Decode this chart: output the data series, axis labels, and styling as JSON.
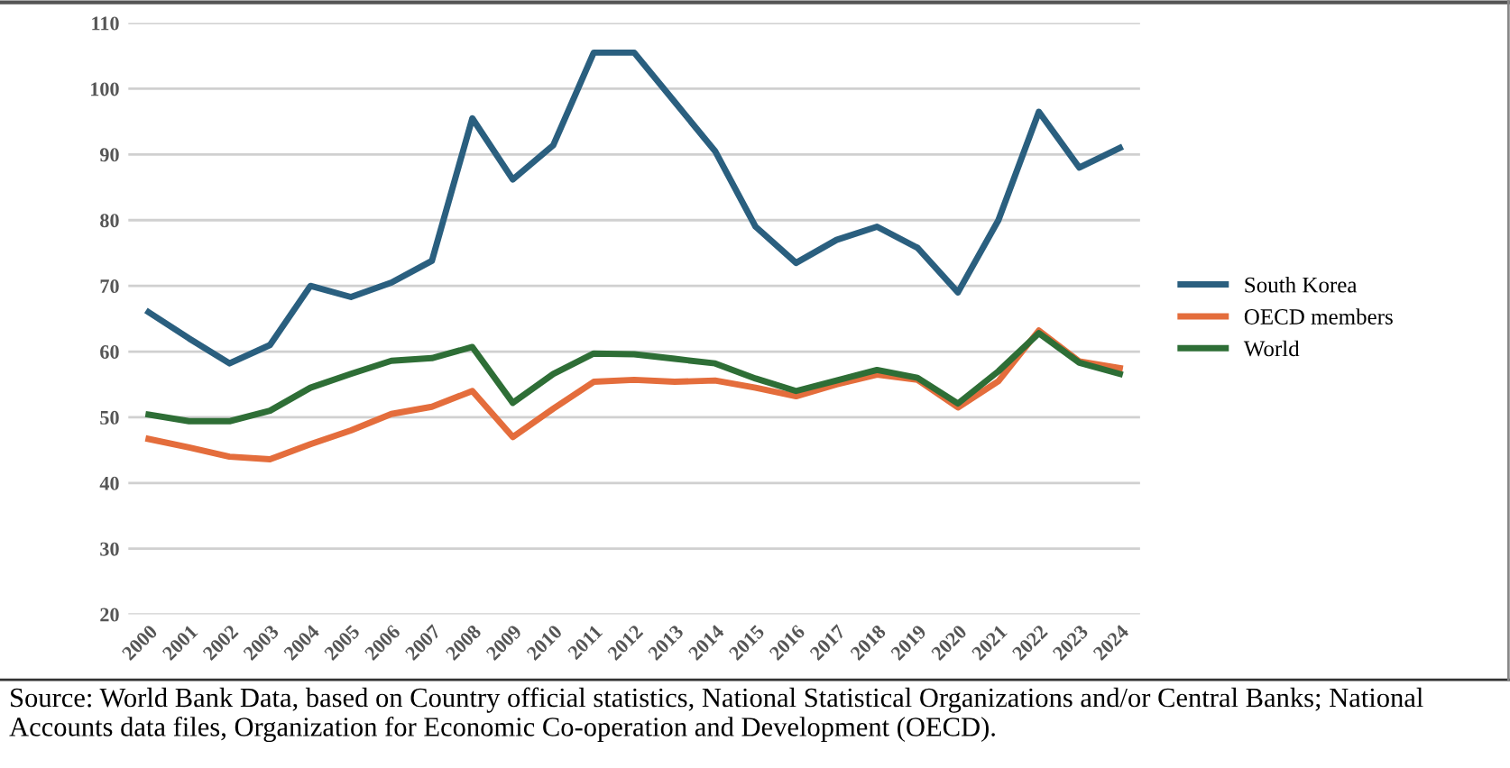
{
  "chart_data": {
    "type": "line",
    "categories": [
      "2000",
      "2001",
      "2002",
      "2003",
      "2004",
      "2005",
      "2006",
      "2007",
      "2008",
      "2009",
      "2010",
      "2011",
      "2012",
      "2013",
      "2014",
      "2015",
      "2016",
      "2017",
      "2018",
      "2019",
      "2020",
      "2021",
      "2022",
      "2023",
      "2024"
    ],
    "series": [
      {
        "name": "South Korea",
        "color": "#2a5f7f",
        "values": [
          66,
          62,
          58.2,
          61,
          70,
          68.3,
          70.5,
          73.8,
          95.5,
          86.2,
          91.4,
          105.5,
          105.5,
          98,
          90.5,
          79,
          73.5,
          77,
          79,
          75.8,
          69,
          80,
          96.5,
          88,
          91
        ]
      },
      {
        "name": "OECD members",
        "color": "#e46d3c",
        "values": [
          46.7,
          45.4,
          44,
          43.6,
          45.9,
          48,
          50.5,
          51.6,
          54,
          47,
          51.3,
          55.4,
          55.7,
          55.4,
          55.6,
          54.5,
          53.2,
          55,
          56.5,
          55.7,
          51.5,
          55.5,
          63.2,
          58.5,
          57.5
        ]
      },
      {
        "name": "World",
        "color": "#2e6e36",
        "values": [
          50.4,
          49.4,
          49.4,
          51,
          54.5,
          56.6,
          58.6,
          59,
          60.7,
          52.2,
          56.6,
          59.7,
          59.6,
          58.9,
          58.2,
          55.9,
          54,
          55.6,
          57.2,
          56,
          52.1,
          57,
          62.8,
          58.3,
          56.6
        ]
      }
    ],
    "ylim": [
      20,
      110
    ],
    "yticks": [
      20,
      30,
      40,
      50,
      60,
      70,
      80,
      90,
      100,
      110
    ],
    "grid": "y",
    "legend": "right",
    "marker": "none",
    "line_style": "solid",
    "annotations": [
      "Source: World Bank Data, based on Country official statistics, National Statistical Organizations and/or Central Banks; National Accounts data files, Organization for Economic Co-operation and Development (OECD)."
    ]
  }
}
